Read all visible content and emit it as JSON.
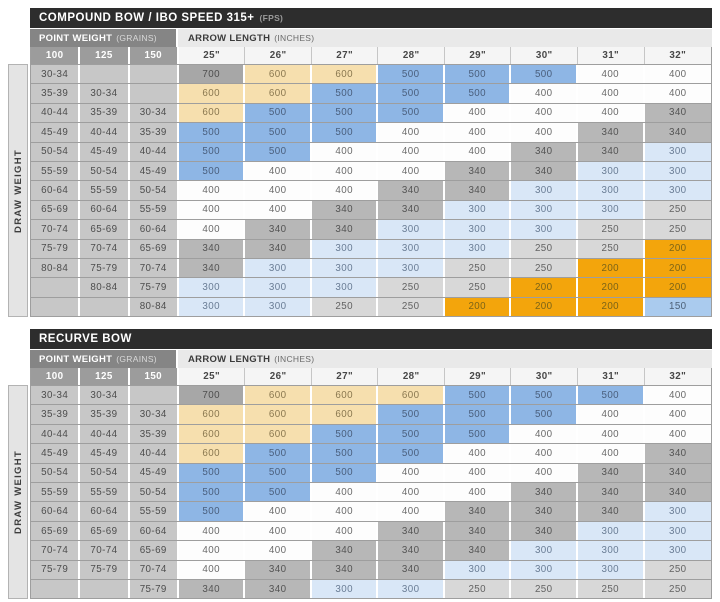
{
  "labels": {
    "point_weight": "POINT WEIGHT",
    "point_weight_unit": "(GRAINS)",
    "arrow_length": "ARROW LENGTH",
    "arrow_length_unit": "(INCHES)",
    "draw_weight": "DRAW WEIGHT"
  },
  "colors": {
    "title_bar_bg": "#2d2d2d",
    "title_unit_text": "#9a9a9a",
    "pw_bar_bg": "#858585",
    "al_bar_bg": "#e9e9e9",
    "pw_colhead_bg": "#9c9c9c",
    "al_colhead_bg": "#f5f5f5",
    "pw_cell_bg": "#c7c7c7",
    "strip_bg": "#e4e4e4"
  },
  "value_colors": {
    "700": {
      "bg": "#a7a7a7",
      "text": "#4e4e4e"
    },
    "600": {
      "bg": "#f6dfae",
      "text": "#8a7850"
    },
    "500": {
      "bg": "#8eb6e5",
      "text": "#4a5f7d"
    },
    "400": {
      "bg": "#fdfdfd",
      "text": "#6b6b6b"
    },
    "340": {
      "bg": "#b7b7b7",
      "text": "#545454"
    },
    "300": {
      "bg": "#d9e7f7",
      "text": "#6a7d95"
    },
    "250": {
      "bg": "#d8d8d8",
      "text": "#636363"
    },
    "200": {
      "bg": "#f3a50c",
      "text": "#7c6418"
    },
    "150": {
      "bg": "#aacbee",
      "text": "#4d6076"
    }
  },
  "chart_data": [
    {
      "type": "table",
      "title": "COMPOUND BOW / IBO SPEED 315+",
      "title_unit": "(FPS)",
      "row_axis_label": "DRAW WEIGHT",
      "column_group_labels": [
        "POINT WEIGHT (GRAINS)",
        "ARROW LENGTH (INCHES)"
      ],
      "point_weight_columns": [
        "100",
        "125",
        "150"
      ],
      "arrow_length_columns": [
        "25\"",
        "26\"",
        "27\"",
        "28\"",
        "29\"",
        "30\"",
        "31\"",
        "32\""
      ],
      "rows": [
        {
          "point_weights": [
            "30-34",
            "",
            ""
          ],
          "spines": [
            700,
            600,
            600,
            500,
            500,
            500,
            400,
            400
          ]
        },
        {
          "point_weights": [
            "35-39",
            "30-34",
            ""
          ],
          "spines": [
            600,
            600,
            500,
            500,
            500,
            400,
            400,
            400
          ]
        },
        {
          "point_weights": [
            "40-44",
            "35-39",
            "30-34"
          ],
          "spines": [
            600,
            500,
            500,
            500,
            400,
            400,
            400,
            340
          ]
        },
        {
          "point_weights": [
            "45-49",
            "40-44",
            "35-39"
          ],
          "spines": [
            500,
            500,
            500,
            400,
            400,
            400,
            340,
            340
          ]
        },
        {
          "point_weights": [
            "50-54",
            "45-49",
            "40-44"
          ],
          "spines": [
            500,
            500,
            400,
            400,
            400,
            340,
            340,
            300
          ]
        },
        {
          "point_weights": [
            "55-59",
            "50-54",
            "45-49"
          ],
          "spines": [
            500,
            400,
            400,
            400,
            340,
            340,
            300,
            300
          ]
        },
        {
          "point_weights": [
            "60-64",
            "55-59",
            "50-54"
          ],
          "spines": [
            400,
            400,
            400,
            340,
            340,
            300,
            300,
            300
          ]
        },
        {
          "point_weights": [
            "65-69",
            "60-64",
            "55-59"
          ],
          "spines": [
            400,
            400,
            340,
            340,
            300,
            300,
            300,
            250
          ]
        },
        {
          "point_weights": [
            "70-74",
            "65-69",
            "60-64"
          ],
          "spines": [
            400,
            340,
            340,
            300,
            300,
            300,
            250,
            250
          ]
        },
        {
          "point_weights": [
            "75-79",
            "70-74",
            "65-69"
          ],
          "spines": [
            340,
            340,
            300,
            300,
            300,
            250,
            250,
            200
          ]
        },
        {
          "point_weights": [
            "80-84",
            "75-79",
            "70-74"
          ],
          "spines": [
            340,
            300,
            300,
            300,
            250,
            250,
            200,
            200
          ]
        },
        {
          "point_weights": [
            "",
            "80-84",
            "75-79"
          ],
          "spines": [
            300,
            300,
            300,
            250,
            250,
            200,
            200,
            200
          ]
        },
        {
          "point_weights": [
            "",
            "",
            "80-84"
          ],
          "spines": [
            300,
            300,
            250,
            250,
            200,
            200,
            200,
            150
          ]
        }
      ]
    },
    {
      "type": "table",
      "title": "RECURVE BOW",
      "title_unit": "",
      "row_axis_label": "DRAW WEIGHT",
      "column_group_labels": [
        "POINT WEIGHT (GRAINS)",
        "ARROW LENGTH (INCHES)"
      ],
      "point_weight_columns": [
        "100",
        "125",
        "150"
      ],
      "arrow_length_columns": [
        "25\"",
        "26\"",
        "27\"",
        "28\"",
        "29\"",
        "30\"",
        "31\"",
        "32\""
      ],
      "rows": [
        {
          "point_weights": [
            "30-34",
            "30-34",
            ""
          ],
          "spines": [
            700,
            600,
            600,
            600,
            500,
            500,
            500,
            400
          ]
        },
        {
          "point_weights": [
            "35-39",
            "35-39",
            "30-34"
          ],
          "spines": [
            600,
            600,
            600,
            500,
            500,
            500,
            400,
            400
          ]
        },
        {
          "point_weights": [
            "40-44",
            "40-44",
            "35-39"
          ],
          "spines": [
            600,
            600,
            500,
            500,
            500,
            400,
            400,
            400
          ]
        },
        {
          "point_weights": [
            "45-49",
            "45-49",
            "40-44"
          ],
          "spines": [
            600,
            500,
            500,
            500,
            400,
            400,
            400,
            340
          ]
        },
        {
          "point_weights": [
            "50-54",
            "50-54",
            "45-49"
          ],
          "spines": [
            500,
            500,
            500,
            400,
            400,
            400,
            340,
            340
          ]
        },
        {
          "point_weights": [
            "55-59",
            "55-59",
            "50-54"
          ],
          "spines": [
            500,
            500,
            400,
            400,
            400,
            340,
            340,
            340
          ]
        },
        {
          "point_weights": [
            "60-64",
            "60-64",
            "55-59"
          ],
          "spines": [
            500,
            400,
            400,
            400,
            340,
            340,
            340,
            300
          ]
        },
        {
          "point_weights": [
            "65-69",
            "65-69",
            "60-64"
          ],
          "spines": [
            400,
            400,
            400,
            340,
            340,
            340,
            300,
            300
          ]
        },
        {
          "point_weights": [
            "70-74",
            "70-74",
            "65-69"
          ],
          "spines": [
            400,
            400,
            340,
            340,
            340,
            300,
            300,
            300
          ]
        },
        {
          "point_weights": [
            "75-79",
            "75-79",
            "70-74"
          ],
          "spines": [
            400,
            340,
            340,
            340,
            300,
            300,
            300,
            250
          ]
        },
        {
          "point_weights": [
            "",
            "",
            "75-79"
          ],
          "spines": [
            340,
            340,
            300,
            300,
            250,
            250,
            250,
            250
          ]
        }
      ]
    }
  ]
}
